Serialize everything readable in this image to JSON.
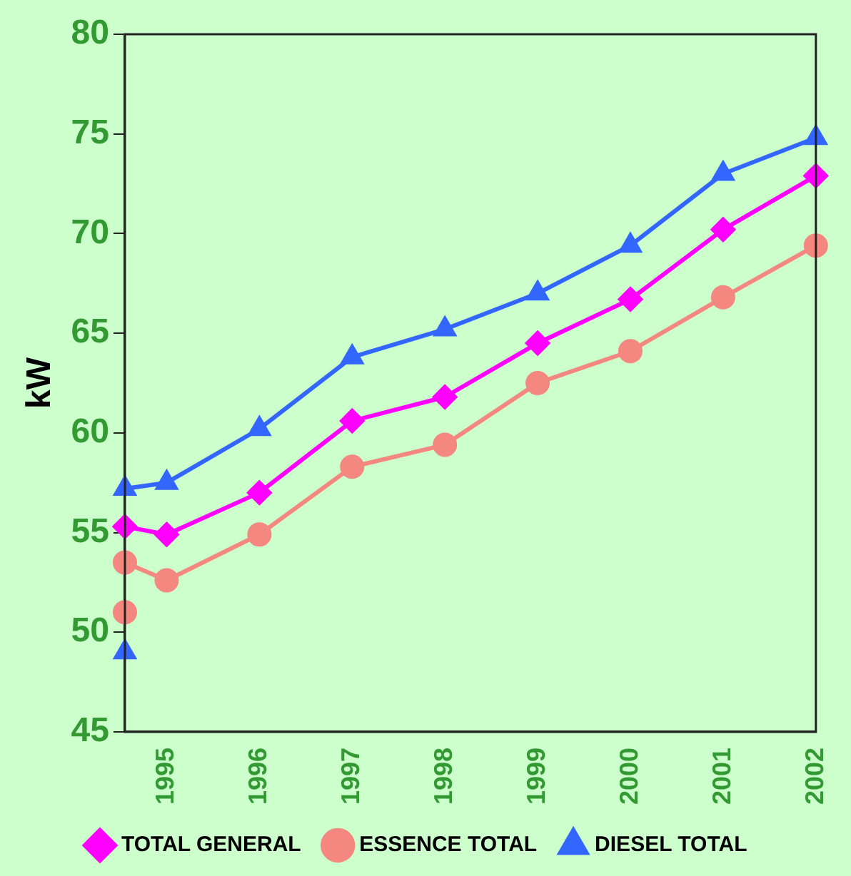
{
  "chart_data": {
    "type": "line",
    "ylabel": "kW",
    "xlim": [
      1994.55,
      2002
    ],
    "xticks": [
      {
        "value": 1994.55,
        "label": null
      },
      1995,
      1996,
      1997,
      1998,
      1999,
      2000,
      2001,
      2002
    ],
    "ylim": [
      45,
      80
    ],
    "yticks": [
      45,
      50,
      55,
      60,
      65,
      70,
      75,
      80
    ],
    "grid": false,
    "legend": "bottom",
    "line_style": "solid",
    "series": [
      {
        "name": "TOTAL GENERAL",
        "color": "#ff00ff",
        "marker": "diamond",
        "x": [
          1994.55,
          1995,
          1996,
          1997,
          1998,
          1999,
          2000,
          2001,
          2002
        ],
        "values": [
          55.3,
          54.9,
          57.0,
          60.6,
          61.8,
          64.5,
          66.7,
          70.2,
          72.9
        ]
      },
      {
        "name": "ESSENCE TOTAL",
        "color": "#f4877f",
        "marker": "circle",
        "x": [
          1994.55,
          1995,
          1996,
          1997,
          1998,
          1999,
          2000,
          2001,
          2002
        ],
        "values": [
          53.5,
          52.6,
          54.9,
          58.3,
          59.4,
          62.5,
          64.1,
          66.8,
          69.4
        ]
      },
      {
        "name": "DIESEL TOTAL",
        "color": "#3366ff",
        "marker": "triangle",
        "x": [
          1994.55,
          1995,
          1996,
          1997,
          1998,
          1999,
          2000,
          2001,
          2002
        ],
        "values": [
          57.2,
          57.5,
          60.2,
          63.8,
          65.2,
          67.0,
          69.4,
          73.0,
          74.8
        ]
      },
      {
        "type": "scatter",
        "color": "#f4877f",
        "marker": "circle",
        "x": [
          1994.55
        ],
        "values": [
          51
        ]
      },
      {
        "type": "scatter",
        "color": "#3366ff",
        "marker": "triangle",
        "x": [
          1994.55
        ],
        "values": [
          49
        ]
      }
    ]
  }
}
